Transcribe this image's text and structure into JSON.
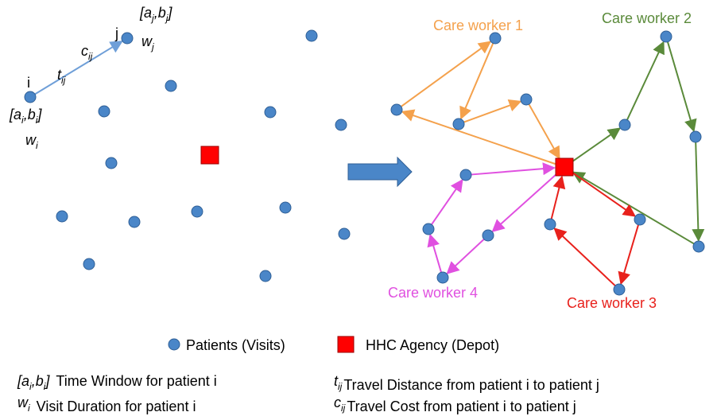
{
  "left_diagram": {
    "node_i": "i",
    "node_j": "j",
    "window_i": [
      "[a",
      "i",
      ",b",
      "i",
      "]"
    ],
    "duration_i": [
      "w",
      "i"
    ],
    "window_j": [
      "[a",
      "j",
      ",b",
      "j",
      "]"
    ],
    "duration_j": [
      "w",
      "j"
    ],
    "distance": [
      "t",
      "ij"
    ],
    "cost": [
      "c",
      "ij"
    ]
  },
  "routes": [
    "Care worker 1",
    "Care worker 2",
    "Care worker 3",
    "Care worker 4"
  ],
  "legend": {
    "patients": "Patients (Visits)",
    "depot": "HHC Agency (Depot)"
  },
  "notes": [
    {
      "symbol": [
        "[a",
        "i",
        ",b",
        "i",
        "]"
      ],
      "text": "Time Window for patient i"
    },
    {
      "symbol": [
        "w",
        "i"
      ],
      "text": "Visit Duration for patient i"
    },
    {
      "symbol": [
        "t",
        "ij"
      ],
      "text": "Travel Distance from patient i to patient j"
    },
    {
      "symbol": [
        "c",
        "ij"
      ],
      "text": "Travel Cost from patient i to patient j"
    }
  ]
}
